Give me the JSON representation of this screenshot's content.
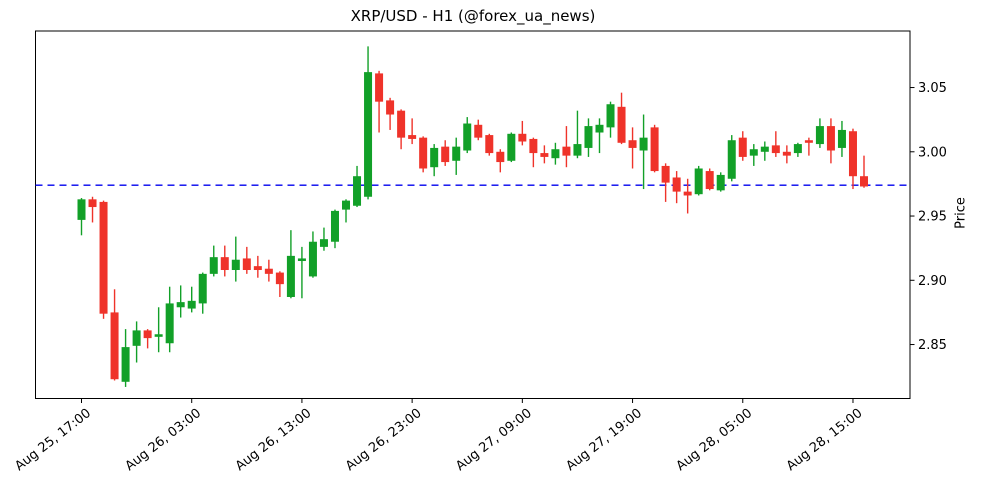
{
  "figure": {
    "title": "XRP/USD - H1 (@forex_ua_news)",
    "background_color": "#ffffff",
    "border_color": "#000000"
  },
  "chart_data": {
    "type": "candlestick",
    "title": "XRP/USD - H1 (@forex_ua_news)",
    "symbol": "XRP/USD",
    "timeframe": "H1",
    "source_handle": "@forex_ua_news",
    "xlabel": "",
    "ylabel": "Price",
    "ylim": [
      2.808,
      3.094
    ],
    "grid": false,
    "up_color": "#12a028",
    "down_color": "#ef332a",
    "reference_line": {
      "price": 2.974,
      "color": "#0000ee",
      "style": "dashed"
    },
    "y_ticks": [
      2.85,
      2.9,
      2.95,
      3.0,
      3.05
    ],
    "y_tick_labels": [
      "2.85",
      "2.90",
      "2.95",
      "3.00",
      "3.05"
    ],
    "x_tick_indices": [
      0,
      10,
      20,
      30,
      40,
      50,
      60,
      70
    ],
    "x_tick_labels": [
      "Aug 25, 17:00",
      "Aug 26, 03:00",
      "Aug 26, 13:00",
      "Aug 26, 23:00",
      "Aug 27, 09:00",
      "Aug 27, 19:00",
      "Aug 28, 05:00",
      "Aug 28, 15:00"
    ],
    "candles": [
      {
        "t": "Aug 25, 17:00",
        "o": 2.947,
        "h": 2.964,
        "l": 2.935,
        "c": 2.963
      },
      {
        "t": "Aug 25, 18:00",
        "o": 2.963,
        "h": 2.965,
        "l": 2.945,
        "c": 2.957
      },
      {
        "t": "Aug 25, 19:00",
        "o": 2.961,
        "h": 2.962,
        "l": 2.87,
        "c": 2.874
      },
      {
        "t": "Aug 25, 20:00",
        "o": 2.875,
        "h": 2.893,
        "l": 2.822,
        "c": 2.823
      },
      {
        "t": "Aug 25, 21:00",
        "o": 2.821,
        "h": 2.862,
        "l": 2.817,
        "c": 2.848
      },
      {
        "t": "Aug 25, 22:00",
        "o": 2.849,
        "h": 2.868,
        "l": 2.836,
        "c": 2.861
      },
      {
        "t": "Aug 25, 23:00",
        "o": 2.861,
        "h": 2.862,
        "l": 2.847,
        "c": 2.855
      },
      {
        "t": "Aug 26, 00:00",
        "o": 2.856,
        "h": 2.879,
        "l": 2.844,
        "c": 2.858
      },
      {
        "t": "Aug 26, 01:00",
        "o": 2.851,
        "h": 2.895,
        "l": 2.844,
        "c": 2.882
      },
      {
        "t": "Aug 26, 02:00",
        "o": 2.879,
        "h": 2.896,
        "l": 2.871,
        "c": 2.883
      },
      {
        "t": "Aug 26, 03:00",
        "o": 2.878,
        "h": 2.895,
        "l": 2.875,
        "c": 2.884
      },
      {
        "t": "Aug 26, 04:00",
        "o": 2.882,
        "h": 2.906,
        "l": 2.874,
        "c": 2.905
      },
      {
        "t": "Aug 26, 05:00",
        "o": 2.905,
        "h": 2.927,
        "l": 2.903,
        "c": 2.918
      },
      {
        "t": "Aug 26, 06:00",
        "o": 2.918,
        "h": 2.927,
        "l": 2.903,
        "c": 2.908
      },
      {
        "t": "Aug 26, 07:00",
        "o": 2.908,
        "h": 2.934,
        "l": 2.899,
        "c": 2.916
      },
      {
        "t": "Aug 26, 08:00",
        "o": 2.917,
        "h": 2.926,
        "l": 2.905,
        "c": 2.908
      },
      {
        "t": "Aug 26, 09:00",
        "o": 2.911,
        "h": 2.919,
        "l": 2.902,
        "c": 2.908
      },
      {
        "t": "Aug 26, 10:00",
        "o": 2.909,
        "h": 2.916,
        "l": 2.899,
        "c": 2.905
      },
      {
        "t": "Aug 26, 11:00",
        "o": 2.906,
        "h": 2.907,
        "l": 2.887,
        "c": 2.897
      },
      {
        "t": "Aug 26, 12:00",
        "o": 2.887,
        "h": 2.939,
        "l": 2.886,
        "c": 2.919
      },
      {
        "t": "Aug 26, 13:00",
        "o": 2.915,
        "h": 2.926,
        "l": 2.886,
        "c": 2.917
      },
      {
        "t": "Aug 26, 14:00",
        "o": 2.903,
        "h": 2.938,
        "l": 2.902,
        "c": 2.93
      },
      {
        "t": "Aug 26, 15:00",
        "o": 2.926,
        "h": 2.941,
        "l": 2.923,
        "c": 2.932
      },
      {
        "t": "Aug 26, 16:00",
        "o": 2.93,
        "h": 2.955,
        "l": 2.925,
        "c": 2.954
      },
      {
        "t": "Aug 26, 17:00",
        "o": 2.955,
        "h": 2.963,
        "l": 2.945,
        "c": 2.962
      },
      {
        "t": "Aug 26, 18:00",
        "o": 2.958,
        "h": 2.989,
        "l": 2.957,
        "c": 2.981
      },
      {
        "t": "Aug 26, 19:00",
        "o": 2.965,
        "h": 3.082,
        "l": 2.963,
        "c": 3.062
      },
      {
        "t": "Aug 26, 20:00",
        "o": 3.061,
        "h": 3.063,
        "l": 3.015,
        "c": 3.039
      },
      {
        "t": "Aug 26, 21:00",
        "o": 3.04,
        "h": 3.042,
        "l": 3.017,
        "c": 3.029
      },
      {
        "t": "Aug 26, 22:00",
        "o": 3.032,
        "h": 3.033,
        "l": 3.002,
        "c": 3.011
      },
      {
        "t": "Aug 26, 23:00",
        "o": 3.013,
        "h": 3.026,
        "l": 3.006,
        "c": 3.01
      },
      {
        "t": "Aug 27, 00:00",
        "o": 3.011,
        "h": 3.012,
        "l": 2.984,
        "c": 2.987
      },
      {
        "t": "Aug 27, 01:00",
        "o": 2.988,
        "h": 3.006,
        "l": 2.981,
        "c": 3.003
      },
      {
        "t": "Aug 27, 02:00",
        "o": 3.004,
        "h": 3.009,
        "l": 2.989,
        "c": 2.992
      },
      {
        "t": "Aug 27, 03:00",
        "o": 2.993,
        "h": 3.011,
        "l": 2.982,
        "c": 3.004
      },
      {
        "t": "Aug 27, 04:00",
        "o": 3.001,
        "h": 3.027,
        "l": 2.999,
        "c": 3.022
      },
      {
        "t": "Aug 27, 05:00",
        "o": 3.021,
        "h": 3.025,
        "l": 3.009,
        "c": 3.011
      },
      {
        "t": "Aug 27, 06:00",
        "o": 3.013,
        "h": 3.014,
        "l": 2.997,
        "c": 2.999
      },
      {
        "t": "Aug 27, 07:00",
        "o": 3.0,
        "h": 3.002,
        "l": 2.984,
        "c": 2.992
      },
      {
        "t": "Aug 27, 08:00",
        "o": 2.993,
        "h": 3.015,
        "l": 2.992,
        "c": 3.014
      },
      {
        "t": "Aug 27, 09:00",
        "o": 3.014,
        "h": 3.024,
        "l": 3.005,
        "c": 3.008
      },
      {
        "t": "Aug 27, 10:00",
        "o": 3.01,
        "h": 3.011,
        "l": 2.988,
        "c": 2.999
      },
      {
        "t": "Aug 27, 11:00",
        "o": 2.999,
        "h": 3.005,
        "l": 2.991,
        "c": 2.996
      },
      {
        "t": "Aug 27, 12:00",
        "o": 2.995,
        "h": 3.007,
        "l": 2.99,
        "c": 3.002
      },
      {
        "t": "Aug 27, 13:00",
        "o": 3.004,
        "h": 3.02,
        "l": 2.988,
        "c": 2.997
      },
      {
        "t": "Aug 27, 14:00",
        "o": 2.997,
        "h": 3.032,
        "l": 2.995,
        "c": 3.006
      },
      {
        "t": "Aug 27, 15:00",
        "o": 3.003,
        "h": 3.026,
        "l": 2.996,
        "c": 3.02
      },
      {
        "t": "Aug 27, 16:00",
        "o": 3.015,
        "h": 3.026,
        "l": 2.999,
        "c": 3.021
      },
      {
        "t": "Aug 27, 17:00",
        "o": 3.019,
        "h": 3.039,
        "l": 3.011,
        "c": 3.037
      },
      {
        "t": "Aug 27, 18:00",
        "o": 3.035,
        "h": 3.046,
        "l": 3.006,
        "c": 3.007
      },
      {
        "t": "Aug 27, 19:00",
        "o": 3.009,
        "h": 3.019,
        "l": 2.987,
        "c": 3.003
      },
      {
        "t": "Aug 27, 20:00",
        "o": 3.001,
        "h": 3.029,
        "l": 2.971,
        "c": 3.011
      },
      {
        "t": "Aug 27, 21:00",
        "o": 3.019,
        "h": 3.021,
        "l": 2.984,
        "c": 2.985
      },
      {
        "t": "Aug 27, 22:00",
        "o": 2.989,
        "h": 2.991,
        "l": 2.961,
        "c": 2.976
      },
      {
        "t": "Aug 27, 23:00",
        "o": 2.98,
        "h": 2.985,
        "l": 2.96,
        "c": 2.969
      },
      {
        "t": "Aug 28, 00:00",
        "o": 2.969,
        "h": 2.979,
        "l": 2.952,
        "c": 2.966
      },
      {
        "t": "Aug 28, 01:00",
        "o": 2.967,
        "h": 2.989,
        "l": 2.966,
        "c": 2.987
      },
      {
        "t": "Aug 28, 02:00",
        "o": 2.985,
        "h": 2.987,
        "l": 2.97,
        "c": 2.971
      },
      {
        "t": "Aug 28, 03:00",
        "o": 2.97,
        "h": 2.984,
        "l": 2.969,
        "c": 2.982
      },
      {
        "t": "Aug 28, 04:00",
        "o": 2.979,
        "h": 3.013,
        "l": 2.977,
        "c": 3.009
      },
      {
        "t": "Aug 28, 05:00",
        "o": 3.011,
        "h": 3.016,
        "l": 2.993,
        "c": 2.996
      },
      {
        "t": "Aug 28, 06:00",
        "o": 2.997,
        "h": 3.006,
        "l": 2.989,
        "c": 3.002
      },
      {
        "t": "Aug 28, 07:00",
        "o": 3.0,
        "h": 3.008,
        "l": 2.993,
        "c": 3.004
      },
      {
        "t": "Aug 28, 08:00",
        "o": 3.005,
        "h": 3.016,
        "l": 2.996,
        "c": 2.999
      },
      {
        "t": "Aug 28, 09:00",
        "o": 3.0,
        "h": 3.005,
        "l": 2.991,
        "c": 2.997
      },
      {
        "t": "Aug 28, 10:00",
        "o": 2.999,
        "h": 3.007,
        "l": 2.996,
        "c": 3.006
      },
      {
        "t": "Aug 28, 11:00",
        "o": 3.009,
        "h": 3.011,
        "l": 2.997,
        "c": 3.007
      },
      {
        "t": "Aug 28, 12:00",
        "o": 3.006,
        "h": 3.026,
        "l": 3.003,
        "c": 3.02
      },
      {
        "t": "Aug 28, 13:00",
        "o": 3.02,
        "h": 3.026,
        "l": 2.991,
        "c": 3.001
      },
      {
        "t": "Aug 28, 14:00",
        "o": 3.003,
        "h": 3.024,
        "l": 2.996,
        "c": 3.017
      },
      {
        "t": "Aug 28, 15:00",
        "o": 3.016,
        "h": 3.018,
        "l": 2.971,
        "c": 2.981
      },
      {
        "t": "Aug 28, 16:00",
        "o": 2.981,
        "h": 2.997,
        "l": 2.972,
        "c": 2.973
      }
    ]
  }
}
